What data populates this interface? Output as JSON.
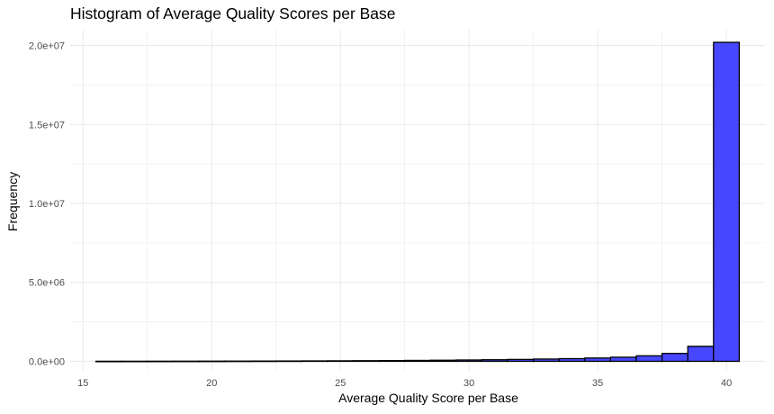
{
  "chart_data": {
    "type": "bar",
    "title": "Histogram of Average Quality Scores per Base",
    "xlabel": "Average Quality Score per Base",
    "ylabel": "Frequency",
    "xlim": [
      14.5,
      41.5
    ],
    "ylim": [
      -600000,
      21000000
    ],
    "x_ticks": [
      15,
      20,
      25,
      30,
      35,
      40
    ],
    "x_tick_labels": [
      "15",
      "20",
      "25",
      "30",
      "35",
      "40"
    ],
    "y_ticks": [
      0,
      5000000,
      10000000,
      15000000,
      20000000
    ],
    "y_tick_labels": [
      "0.0e+00",
      "5.0e+06",
      "1.0e+07",
      "1.5e+07",
      "2.0e+07"
    ],
    "bin_width": 1,
    "bin_centers": [
      16,
      17,
      18,
      19,
      20,
      21,
      22,
      23,
      24,
      25,
      26,
      27,
      28,
      29,
      30,
      31,
      32,
      33,
      34,
      35,
      36,
      37,
      38,
      39,
      40
    ],
    "values": [
      5000,
      6000,
      8000,
      10000,
      12000,
      15000,
      18000,
      22000,
      27000,
      33000,
      40000,
      48000,
      58000,
      70000,
      85000,
      100000,
      120000,
      145000,
      170000,
      210000,
      260000,
      350000,
      500000,
      950000,
      20200000
    ],
    "bar_fill": "#4747ff",
    "bar_stroke": "#000000",
    "grid": true,
    "grid_color": "#ebebeb",
    "legend": "none"
  }
}
